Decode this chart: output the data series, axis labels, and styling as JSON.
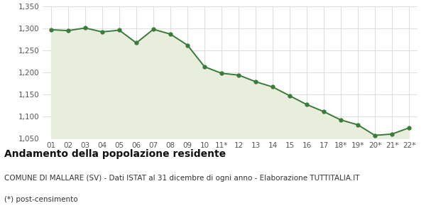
{
  "x_labels": [
    "01",
    "02",
    "03",
    "04",
    "05",
    "06",
    "07",
    "08",
    "09",
    "10",
    "11*",
    "12",
    "13",
    "14",
    "15",
    "16",
    "17",
    "18*",
    "19*",
    "20*",
    "21*",
    "22*"
  ],
  "y_values": [
    1297,
    1295,
    1301,
    1292,
    1296,
    1267,
    1298,
    1287,
    1262,
    1213,
    1198,
    1194,
    1179,
    1167,
    1147,
    1127,
    1111,
    1092,
    1081,
    1057,
    1060,
    1074
  ],
  "ylim": [
    1050,
    1350
  ],
  "yticks": [
    1050,
    1100,
    1150,
    1200,
    1250,
    1300,
    1350
  ],
  "line_color": "#3a7a3a",
  "fill_color": "#e8eedc",
  "marker_color": "#3a7a3a",
  "bg_color": "#ffffff",
  "plot_bg_color": "#ffffff",
  "grid_color": "#d0d0d0",
  "title": "Andamento della popolazione residente",
  "subtitle": "COMUNE DI MALLARE (SV) - Dati ISTAT al 31 dicembre di ogni anno - Elaborazione TUTTITALIA.IT",
  "footnote": "(*) post-censimento",
  "title_fontsize": 10,
  "subtitle_fontsize": 7.5,
  "footnote_fontsize": 7.5,
  "tick_fontsize": 7.5,
  "label_color": "#555555"
}
